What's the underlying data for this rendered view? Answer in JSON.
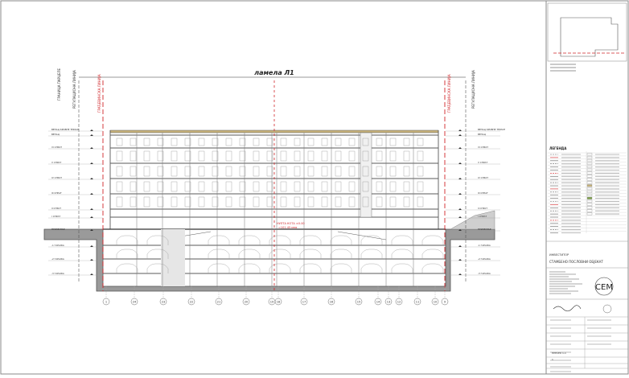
{
  "drawing": {
    "title": "ламела Л1",
    "levels_left": [
      "ВЕНАЦ КРОВНЕ ТЕРАСЕ",
      "ВЕНАЦ",
      "VI СПРАТ",
      "V СПРАТ",
      "IV СПРАТ",
      "III СПРАТ",
      "II СПРАТ",
      "I СПРАТ",
      "ПРИЗЕМЉЕ",
      "-1 ГАРАЖА",
      "-2 ГАРАЖА",
      "-3 ГАРАЖА"
    ],
    "levels_right": [
      "ВЕНАЦ КРОВНЕ ТЕРАСЕ",
      "ВЕНАЦ",
      "VI СПРАТ",
      "V СПРАТ",
      "IV СПРАТ",
      "III СПРАТ",
      "II СПРАТ",
      "I СПРАТ",
      "ПРИЗЕМЉЕ",
      "-1 ГАРАЖА",
      "-2 ГАРАЖА",
      "-3 ГАРАЖА"
    ],
    "vertical_labels": [
      "ГРАНИЦА ПАРЦЕЛЕ",
      "РЕГУЛАЦИОНА ЛИНИЈА",
      "ГРАЂЕВИНСКА ЛИНИЈА"
    ],
    "center_note": [
      "НУЛТА КОТА ±0.00",
      "=101.45 мнв"
    ],
    "axes": [
      "1",
      "24",
      "23",
      "22",
      "21",
      "20",
      "19",
      "18",
      "17",
      "16",
      "15",
      "14",
      "13",
      "12",
      "11",
      "10",
      "9"
    ]
  },
  "title_block": {
    "legend_title": "ЛЕГЕНДА",
    "project_heading": "ИНВЕСТИТОР",
    "project_name": "СТАМБЕНО ПОСЛОВНИ ОБЈЕКАТ",
    "logo": "CEM",
    "sheet_label": "ПРЕСЕК 1-1",
    "sheet_number": "1"
  },
  "colors": {
    "line": "#5a5a5a",
    "red": "#d0262a",
    "ground": "#8c8c8c",
    "slab": "#c7b27a"
  }
}
